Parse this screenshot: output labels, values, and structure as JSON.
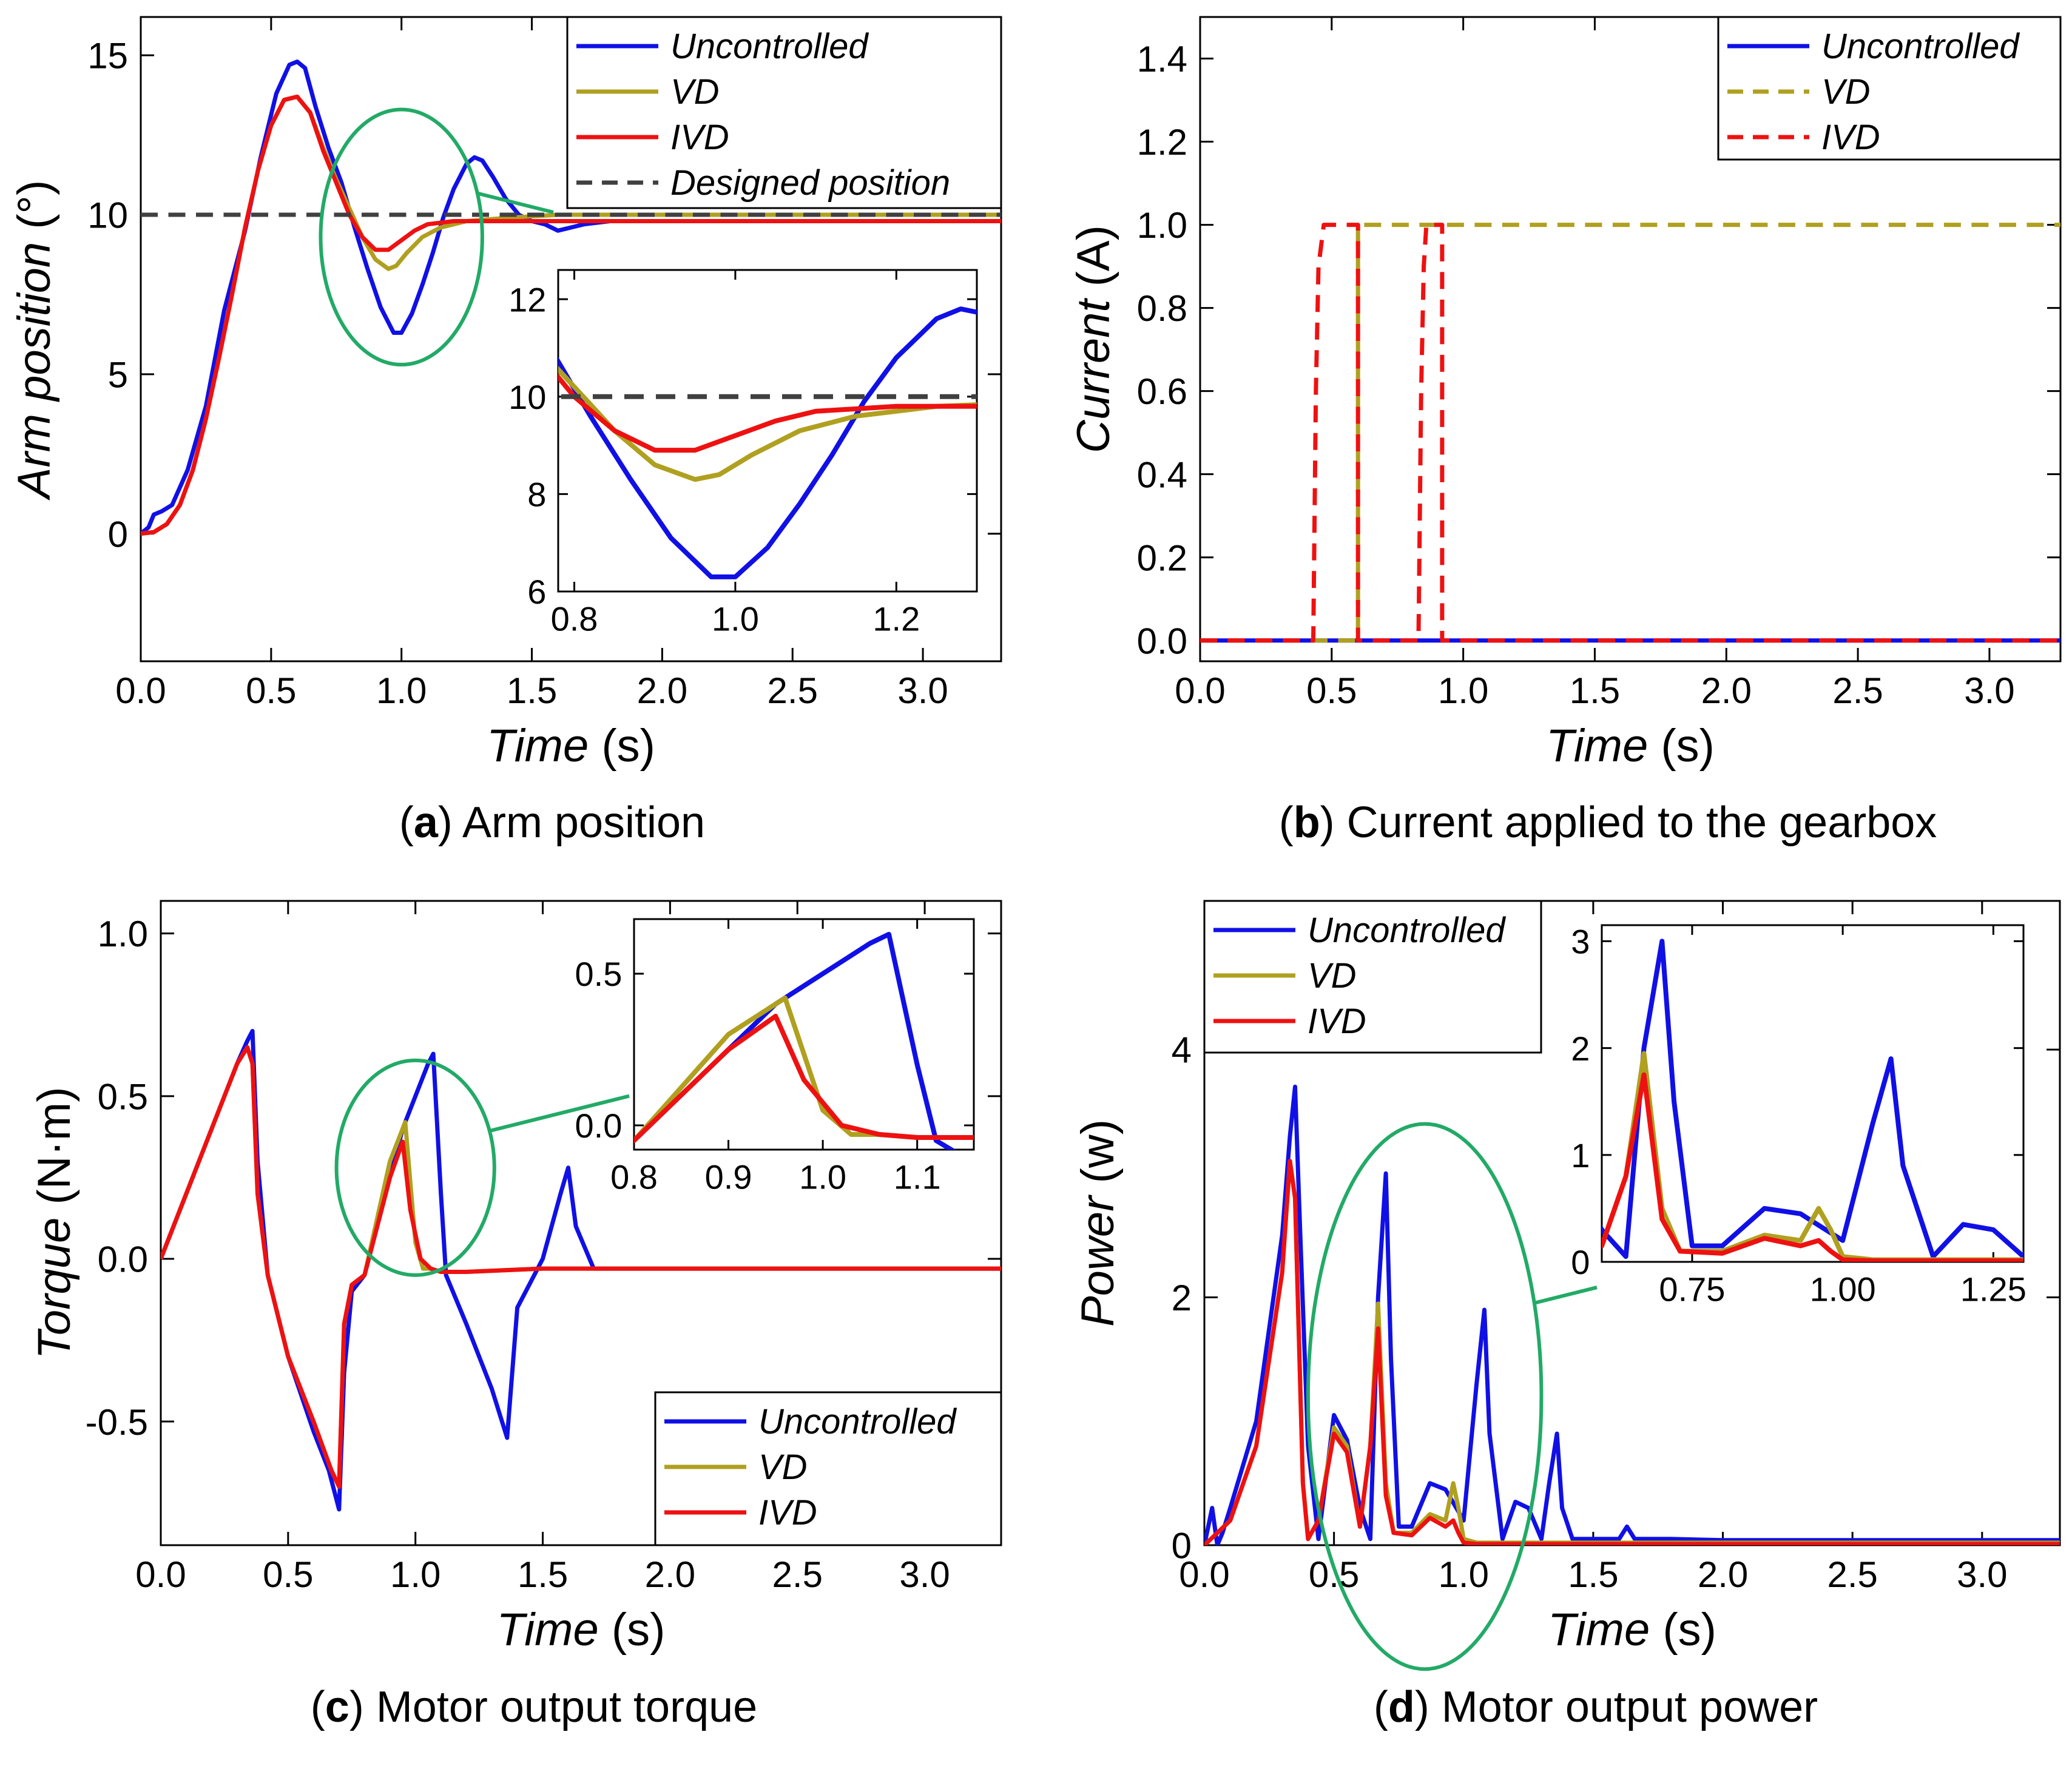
{
  "figure": {
    "series_colors": {
      "Uncontrolled": "#1010e6",
      "VD": "#b0a020",
      "IVD": "#ee1111",
      "Designed position": "#404040",
      "highlight": "#22aa66"
    }
  },
  "chart_data": [
    {
      "id": "a",
      "type": "line",
      "caption_label": "a",
      "caption_text": " Arm position",
      "xlabel": "Time",
      "xunit": " (s)",
      "ylabel": "Arm position",
      "yunit": " (°)",
      "xlim": [
        0,
        3.3
      ],
      "ylim": [
        -4,
        16.2
      ],
      "xticks": [
        0,
        0.5,
        1.0,
        1.5,
        2.0,
        2.5,
        3.0
      ],
      "xtick_labels": [
        "0.0",
        "0.5",
        "1.0",
        "1.5",
        "2.0",
        "2.5",
        "3.0"
      ],
      "yticks": [
        0,
        5,
        10,
        15
      ],
      "ytick_labels": [
        "0",
        "5",
        "10",
        "15"
      ],
      "legend": [
        "Uncontrolled",
        "VD",
        "IVD",
        "Designed position"
      ],
      "legend_position": "top-right",
      "series": [
        {
          "name": "Uncontrolled",
          "style": "solid",
          "x": [
            0,
            0.03,
            0.05,
            0.08,
            0.12,
            0.18,
            0.25,
            0.32,
            0.4,
            0.46,
            0.52,
            0.57,
            0.6,
            0.63,
            0.67,
            0.72,
            0.77,
            0.82,
            0.87,
            0.92,
            0.97,
            1.0,
            1.04,
            1.08,
            1.12,
            1.16,
            1.2,
            1.25,
            1.28,
            1.31,
            1.35,
            1.4,
            1.45,
            1.5,
            1.55,
            1.6,
            1.65,
            1.7,
            1.8,
            2.0,
            2.5,
            3.0,
            3.3
          ],
          "y": [
            0,
            0.2,
            0.6,
            0.7,
            0.9,
            2.0,
            4.0,
            7.0,
            9.5,
            11.8,
            13.8,
            14.7,
            14.8,
            14.6,
            13.4,
            12.1,
            11.0,
            9.6,
            8.3,
            7.1,
            6.3,
            6.3,
            6.9,
            7.8,
            8.8,
            9.9,
            10.8,
            11.6,
            11.8,
            11.7,
            11.2,
            10.5,
            10.0,
            9.8,
            9.7,
            9.5,
            9.6,
            9.7,
            9.8,
            9.8,
            9.8,
            9.8,
            9.8
          ]
        },
        {
          "name": "VD",
          "style": "solid",
          "x": [
            0,
            0.05,
            0.1,
            0.15,
            0.2,
            0.25,
            0.3,
            0.35,
            0.4,
            0.45,
            0.5,
            0.55,
            0.6,
            0.65,
            0.7,
            0.75,
            0.8,
            0.85,
            0.9,
            0.95,
            0.98,
            1.02,
            1.08,
            1.15,
            1.25,
            1.4,
            1.6,
            2.0,
            2.5,
            3.0,
            3.3
          ],
          "y": [
            0,
            0.05,
            0.3,
            0.9,
            2.0,
            3.6,
            5.5,
            7.5,
            9.6,
            11.4,
            12.8,
            13.6,
            13.7,
            13.2,
            12.1,
            11.1,
            10.2,
            9.3,
            8.6,
            8.3,
            8.4,
            8.8,
            9.3,
            9.6,
            9.8,
            9.9,
            10.0,
            10.0,
            10.0,
            10.0,
            10.0
          ]
        },
        {
          "name": "IVD",
          "style": "solid",
          "x": [
            0,
            0.05,
            0.1,
            0.15,
            0.2,
            0.25,
            0.3,
            0.35,
            0.4,
            0.45,
            0.5,
            0.55,
            0.6,
            0.65,
            0.7,
            0.75,
            0.8,
            0.85,
            0.9,
            0.95,
            1.0,
            1.05,
            1.1,
            1.2,
            1.4,
            1.6,
            2.0,
            2.5,
            3.0,
            3.3
          ],
          "y": [
            0,
            0.05,
            0.3,
            0.9,
            2.0,
            3.6,
            5.5,
            7.5,
            9.6,
            11.4,
            12.8,
            13.6,
            13.7,
            13.2,
            12.0,
            11.0,
            10.0,
            9.3,
            8.9,
            8.9,
            9.2,
            9.5,
            9.7,
            9.8,
            9.8,
            9.8,
            9.8,
            9.8,
            9.8,
            9.8
          ]
        },
        {
          "name": "Designed position",
          "style": "dashed",
          "x": [
            0,
            3.3
          ],
          "y": [
            10,
            10
          ]
        }
      ],
      "highlight_ellipse": {
        "cx": 1.0,
        "cy": 9.3,
        "rx": 0.31,
        "ry": 4.0
      },
      "inset": {
        "xlim": [
          0.78,
          1.3
        ],
        "ylim": [
          6,
          12.6
        ],
        "xticks": [
          0.8,
          1.0,
          1.2
        ],
        "xtick_labels": [
          "0.8",
          "1.0",
          "1.2"
        ],
        "yticks": [
          6,
          8,
          10,
          12
        ],
        "ytick_labels": [
          "6",
          "8",
          "10",
          "12"
        ]
      }
    },
    {
      "id": "b",
      "type": "line",
      "caption_label": "b",
      "caption_text": " Current applied to the gearbox",
      "xlabel": "Time",
      "xunit": " (s)",
      "ylabel": "Current",
      "yunit": " (A)",
      "xlim": [
        0,
        3.27
      ],
      "ylim": [
        -0.05,
        1.5
      ],
      "xticks": [
        0,
        0.5,
        1.0,
        1.5,
        2.0,
        2.5,
        3.0
      ],
      "xtick_labels": [
        "0.0",
        "0.5",
        "1.0",
        "1.5",
        "2.0",
        "2.5",
        "3.0"
      ],
      "yticks": [
        0,
        0.2,
        0.4,
        0.6,
        0.8,
        1.0,
        1.2,
        1.4
      ],
      "ytick_labels": [
        "0.0",
        "0.2",
        "0.4",
        "0.6",
        "0.8",
        "1.0",
        "1.2",
        "1.4"
      ],
      "legend": [
        "Uncontrolled",
        "VD",
        "IVD"
      ],
      "legend_position": "top-right",
      "series": [
        {
          "name": "Uncontrolled",
          "style": "solid",
          "x": [
            0,
            3.27
          ],
          "y": [
            0,
            0
          ]
        },
        {
          "name": "VD",
          "style": "dashed",
          "x": [
            0,
            0.6,
            0.6,
            3.27
          ],
          "y": [
            0,
            0,
            1.0,
            1.0
          ]
        },
        {
          "name": "IVD",
          "style": "dashed",
          "x": [
            0,
            0.43,
            0.44,
            0.45,
            0.47,
            0.6,
            0.6,
            0.83,
            0.84,
            0.85,
            0.86,
            0.92,
            0.92,
            3.27
          ],
          "y": [
            0,
            0,
            0.6,
            0.9,
            1.0,
            1.0,
            0,
            0,
            0.6,
            0.9,
            1.0,
            1.0,
            0,
            0
          ]
        }
      ]
    },
    {
      "id": "c",
      "type": "line",
      "caption_label": "c",
      "caption_text": " Motor output torque",
      "xlabel": "Time",
      "xunit": " (s)",
      "ylabel": "Torque",
      "yunit": " (N·m)",
      "xlim": [
        0,
        3.3
      ],
      "ylim": [
        -0.88,
        1.1
      ],
      "xticks": [
        0,
        0.5,
        1.0,
        1.5,
        2.0,
        2.5,
        3.0
      ],
      "xtick_labels": [
        "0.0",
        "0.5",
        "1.0",
        "1.5",
        "2.0",
        "2.5",
        "3.0"
      ],
      "yticks": [
        -0.5,
        0,
        0.5,
        1.0
      ],
      "ytick_labels": [
        "-0.5",
        "0.0",
        "0.5",
        "1.0"
      ],
      "legend": [
        "Uncontrolled",
        "VD",
        "IVD"
      ],
      "legend_position": "bottom-right",
      "series": [
        {
          "name": "Uncontrolled",
          "style": "solid",
          "x": [
            0,
            0.1,
            0.2,
            0.3,
            0.34,
            0.36,
            0.38,
            0.42,
            0.5,
            0.6,
            0.66,
            0.7,
            0.72,
            0.75,
            0.8,
            0.9,
            0.95,
            1.0,
            1.05,
            1.07,
            1.1,
            1.12,
            1.2,
            1.3,
            1.36,
            1.4,
            1.5,
            1.57,
            1.6,
            1.63,
            1.7,
            1.8,
            2.0,
            2.5,
            3.0,
            3.3
          ],
          "y": [
            0,
            0.2,
            0.4,
            0.6,
            0.67,
            0.7,
            0.3,
            -0.05,
            -0.3,
            -0.53,
            -0.65,
            -0.77,
            -0.35,
            -0.1,
            -0.05,
            0.25,
            0.4,
            0.5,
            0.6,
            0.63,
            0.2,
            -0.05,
            -0.2,
            -0.4,
            -0.55,
            -0.15,
            0.0,
            0.2,
            0.28,
            0.1,
            -0.03,
            -0.03,
            -0.03,
            -0.03,
            -0.03,
            -0.03
          ]
        },
        {
          "name": "VD",
          "style": "solid",
          "x": [
            0,
            0.1,
            0.2,
            0.3,
            0.34,
            0.36,
            0.38,
            0.42,
            0.5,
            0.6,
            0.67,
            0.7,
            0.72,
            0.75,
            0.8,
            0.9,
            0.96,
            1.0,
            1.03,
            1.06,
            1.1,
            1.2,
            1.5,
            2.0,
            2.5,
            3.0,
            3.3
          ],
          "y": [
            0,
            0.2,
            0.4,
            0.6,
            0.65,
            0.6,
            0.2,
            -0.05,
            -0.3,
            -0.5,
            -0.65,
            -0.7,
            -0.2,
            -0.08,
            -0.05,
            0.3,
            0.42,
            0.05,
            -0.03,
            -0.03,
            -0.04,
            -0.04,
            -0.03,
            -0.03,
            -0.03,
            -0.03,
            -0.03
          ]
        },
        {
          "name": "IVD",
          "style": "solid",
          "x": [
            0,
            0.1,
            0.2,
            0.3,
            0.34,
            0.36,
            0.38,
            0.42,
            0.5,
            0.6,
            0.67,
            0.7,
            0.72,
            0.75,
            0.8,
            0.9,
            0.95,
            0.98,
            1.02,
            1.06,
            1.1,
            1.2,
            1.5,
            2.0,
            2.5,
            3.0,
            3.3
          ],
          "y": [
            0,
            0.2,
            0.4,
            0.6,
            0.65,
            0.6,
            0.2,
            -0.05,
            -0.3,
            -0.5,
            -0.65,
            -0.7,
            -0.2,
            -0.08,
            -0.05,
            0.25,
            0.36,
            0.15,
            0.0,
            -0.03,
            -0.04,
            -0.04,
            -0.03,
            -0.03,
            -0.03,
            -0.03,
            -0.03
          ]
        }
      ],
      "highlight_ellipse": {
        "cx": 1.0,
        "cy": 0.28,
        "rx": 0.31,
        "ry": 0.33
      },
      "inset": {
        "xlim": [
          0.8,
          1.16
        ],
        "ylim": [
          -0.08,
          0.68
        ],
        "xticks": [
          0.8,
          0.9,
          1.0,
          1.1
        ],
        "xtick_labels": [
          "0.8",
          "0.9",
          "1.0",
          "1.1"
        ],
        "yticks": [
          0,
          0.5
        ],
        "ytick_labels": [
          "0.0",
          "0.5"
        ]
      }
    },
    {
      "id": "d",
      "type": "line",
      "caption_label": "d",
      "caption_text": " Motor output power",
      "xlabel": "Time",
      "xunit": " (s)",
      "ylabel": "Power",
      "yunit": " (w)",
      "xlim": [
        0,
        3.3
      ],
      "ylim": [
        0,
        5.2
      ],
      "xticks": [
        0,
        0.5,
        1.0,
        1.5,
        2.0,
        2.5,
        3.0
      ],
      "xtick_labels": [
        "0.0",
        "0.5",
        "1.0",
        "1.5",
        "2.0",
        "2.5",
        "3.0"
      ],
      "yticks": [
        0,
        2,
        4
      ],
      "ytick_labels": [
        "0",
        "2",
        "4"
      ],
      "legend": [
        "Uncontrolled",
        "VD",
        "IVD"
      ],
      "legend_position": "top-left",
      "series": [
        {
          "name": "Uncontrolled",
          "style": "solid",
          "x": [
            0,
            0.03,
            0.05,
            0.07,
            0.1,
            0.2,
            0.3,
            0.33,
            0.35,
            0.37,
            0.4,
            0.44,
            0.5,
            0.55,
            0.6,
            0.64,
            0.67,
            0.7,
            0.72,
            0.75,
            0.8,
            0.87,
            0.93,
            1.0,
            1.05,
            1.08,
            1.1,
            1.15,
            1.2,
            1.25,
            1.3,
            1.33,
            1.36,
            1.38,
            1.42,
            1.5,
            1.6,
            1.63,
            1.66,
            1.8,
            2.0,
            2.5,
            3.0,
            3.3
          ],
          "y": [
            0,
            0.3,
            0,
            0.1,
            0.3,
            1.0,
            2.5,
            3.3,
            3.7,
            2.5,
            0.8,
            0.05,
            1.05,
            0.85,
            0.3,
            0.05,
            2.0,
            3.0,
            1.5,
            0.15,
            0.15,
            0.5,
            0.45,
            0.2,
            1.3,
            1.9,
            0.9,
            0.05,
            0.35,
            0.3,
            0.05,
            0.5,
            0.9,
            0.3,
            0.05,
            0.05,
            0.05,
            0.15,
            0.05,
            0.05,
            0.04,
            0.04,
            0.04,
            0.04
          ]
        },
        {
          "name": "VD",
          "style": "solid",
          "x": [
            0,
            0.05,
            0.1,
            0.2,
            0.3,
            0.33,
            0.35,
            0.38,
            0.4,
            0.44,
            0.5,
            0.55,
            0.6,
            0.64,
            0.67,
            0.7,
            0.73,
            0.8,
            0.87,
            0.93,
            0.96,
            0.98,
            1.0,
            1.05,
            1.1,
            1.2,
            1.5,
            2.0,
            2.5,
            3.0,
            3.3
          ],
          "y": [
            0,
            0.1,
            0.2,
            0.8,
            2.2,
            3.1,
            2.8,
            0.5,
            0.05,
            0.2,
            0.95,
            0.8,
            0.15,
            0.8,
            1.95,
            0.5,
            0.1,
            0.1,
            0.25,
            0.2,
            0.5,
            0.3,
            0.05,
            0.02,
            0.02,
            0.02,
            0.02,
            0.02,
            0.02,
            0.02,
            0.02
          ]
        },
        {
          "name": "IVD",
          "style": "solid",
          "x": [
            0,
            0.05,
            0.1,
            0.2,
            0.3,
            0.33,
            0.35,
            0.38,
            0.4,
            0.44,
            0.5,
            0.55,
            0.6,
            0.64,
            0.67,
            0.7,
            0.73,
            0.8,
            0.87,
            0.93,
            0.96,
            0.98,
            1.0,
            1.05,
            1.1,
            1.2,
            1.5,
            2.0,
            2.5,
            3.0,
            3.3
          ],
          "y": [
            0,
            0.1,
            0.2,
            0.8,
            2.2,
            3.1,
            2.8,
            0.5,
            0.05,
            0.2,
            0.9,
            0.75,
            0.15,
            0.8,
            1.75,
            0.4,
            0.1,
            0.08,
            0.22,
            0.15,
            0.2,
            0.1,
            0.02,
            0.01,
            0.01,
            0.01,
            0.01,
            0.01,
            0.01,
            0.01,
            0.01
          ]
        }
      ],
      "highlight_ellipse": {
        "cx": 0.85,
        "cy": 1.2,
        "rx": 0.45,
        "ry": 2.2
      },
      "inset": {
        "xlim": [
          0.6,
          1.3
        ],
        "ylim": [
          0,
          3.15
        ],
        "xticks": [
          0.75,
          1.0,
          1.25
        ],
        "xtick_labels": [
          "0.75",
          "1.00",
          "1.25"
        ],
        "yticks": [
          0,
          1,
          2,
          3
        ],
        "ytick_labels": [
          "0",
          "1",
          "2",
          "3"
        ]
      }
    }
  ]
}
